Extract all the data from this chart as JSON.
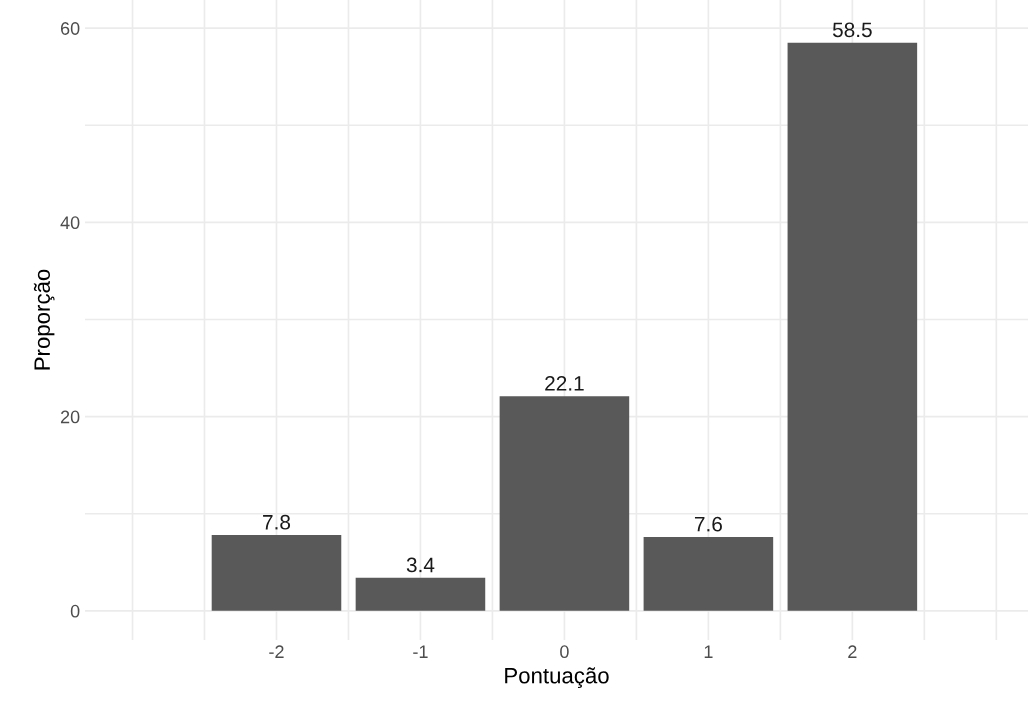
{
  "chart_data": {
    "type": "bar",
    "xlabel": "Pontuação",
    "ylabel": "Proporção",
    "x": [
      -2,
      -1,
      0,
      1,
      2
    ],
    "values": [
      7.8,
      3.4,
      22.1,
      7.6,
      58.5
    ],
    "color": "#595959",
    "xlim": [
      -3.33,
      3.22
    ],
    "xticks": [
      {
        "value": -3,
        "label": null
      },
      {
        "value": -2.5,
        "label": null
      },
      {
        "value": -2,
        "label": "-2"
      },
      {
        "value": -1.5,
        "label": null
      },
      {
        "value": -1,
        "label": "-1"
      },
      {
        "value": -0.5,
        "label": null
      },
      0,
      {
        "value": 0.5,
        "label": null
      },
      1,
      {
        "value": 1.5,
        "label": null
      },
      2,
      {
        "value": 2.5,
        "label": null
      },
      {
        "value": 3,
        "label": null
      }
    ],
    "ylim": [
      -3,
      62.9
    ],
    "yticks": [
      0,
      {
        "value": 10,
        "label": null
      },
      20,
      {
        "value": 30,
        "label": null
      },
      40,
      {
        "value": 50,
        "label": null
      },
      60
    ],
    "grid": true,
    "data_labels": true
  }
}
